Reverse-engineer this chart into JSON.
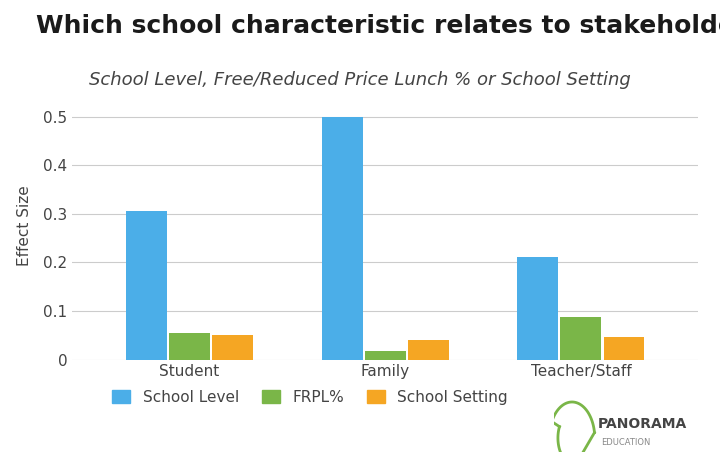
{
  "title": "Which school characteristic relates to stakeholders’ perceptions?",
  "subtitle": "School Level, Free/Reduced Price Lunch % or School Setting",
  "categories": [
    "Student",
    "Family",
    "Teacher/Staff"
  ],
  "series": {
    "School Level": [
      0.305,
      0.5,
      0.21
    ],
    "FRPL%": [
      0.055,
      0.018,
      0.088
    ],
    "School Setting": [
      0.05,
      0.04,
      0.047
    ]
  },
  "colors": {
    "School Level": "#4BAEE8",
    "FRPL%": "#7AB648",
    "School Setting": "#F5A623"
  },
  "ylabel": "Effect Size",
  "ylim": [
    0,
    0.55
  ],
  "yticks": [
    0,
    0.1,
    0.2,
    0.3,
    0.4,
    0.5
  ],
  "bar_width": 0.22,
  "background_color": "#FFFFFF",
  "title_fontsize": 18,
  "subtitle_fontsize": 13,
  "axis_label_fontsize": 11,
  "tick_fontsize": 11,
  "legend_fontsize": 11
}
